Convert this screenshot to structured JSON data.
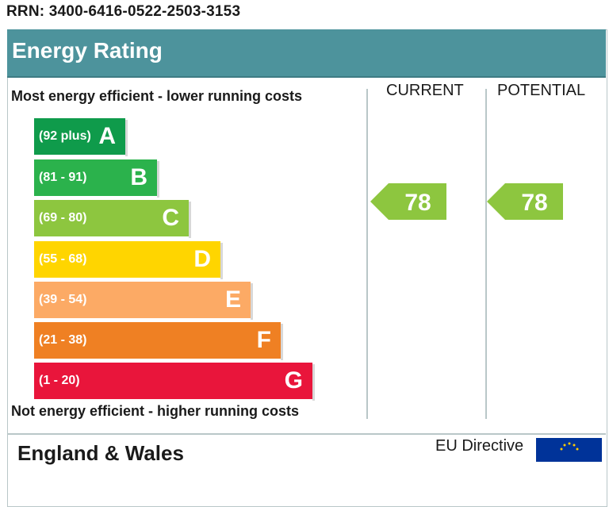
{
  "rrn": "RRN: 3400-6416-0522-2503-3153",
  "header": {
    "title": "Energy Rating"
  },
  "notes": {
    "top": "Most energy efficient - lower running costs",
    "bottom": "Not energy efficient - higher running costs"
  },
  "columns": {
    "current": "CURRENT",
    "potential": "POTENTIAL"
  },
  "footer": {
    "region": "England & Wales",
    "eu_directive": "EU Directive"
  },
  "colors": {
    "header": "#4d939c",
    "rating_arrow": "#8dc63f",
    "eu_flag": "#003399"
  },
  "chart_data": {
    "type": "bar",
    "categories": [
      "A",
      "B",
      "C",
      "D",
      "E",
      "F",
      "G"
    ],
    "bands": [
      {
        "letter": "A",
        "range": "(92 plus)",
        "min": 92,
        "max": null,
        "color": "#0f9b4b"
      },
      {
        "letter": "B",
        "range": "(81 - 91)",
        "min": 81,
        "max": 91,
        "color": "#2bb24c"
      },
      {
        "letter": "C",
        "range": "(69 - 80)",
        "min": 69,
        "max": 80,
        "color": "#8dc63f"
      },
      {
        "letter": "D",
        "range": "(55 - 68)",
        "min": 55,
        "max": 68,
        "color": "#ffd500"
      },
      {
        "letter": "E",
        "range": "(39 - 54)",
        "min": 39,
        "max": 54,
        "color": "#fcaa65"
      },
      {
        "letter": "F",
        "range": "(21 - 38)",
        "min": 21,
        "max": 38,
        "color": "#ef8023"
      },
      {
        "letter": "G",
        "range": "(1 - 20)",
        "min": 1,
        "max": 20,
        "color": "#e9153b"
      }
    ],
    "current": 78,
    "potential": 78
  }
}
